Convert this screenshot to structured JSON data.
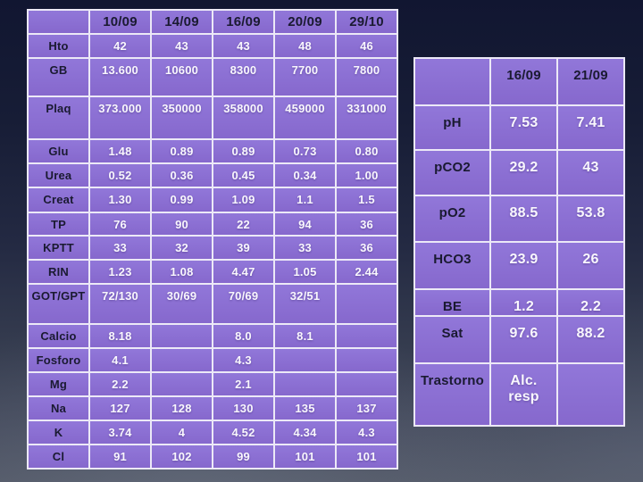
{
  "colors": {
    "cell_fill": "#8a6fd3",
    "cell_border": "#ece9f7",
    "label_text": "#1a1a31",
    "value_text": "#f9f7fd",
    "background_top": "#111631",
    "background_bottom": "#515765"
  },
  "left_table": {
    "columns": [
      "",
      "10/09",
      "14/09",
      "16/09",
      "20/09",
      "29/10"
    ],
    "rows": [
      {
        "label": "Hto",
        "values": [
          "42",
          "43",
          "43",
          "48",
          "46"
        ]
      },
      {
        "label": "GB",
        "values": [
          "13.600",
          "10600",
          "8300",
          "7700",
          "7800"
        ]
      },
      {
        "label": "Plaq",
        "values": [
          "373.000",
          "350000",
          "358000",
          "459000",
          "331000"
        ]
      },
      {
        "label": "Glu",
        "values": [
          "1.48",
          "0.89",
          "0.89",
          "0.73",
          "0.80"
        ]
      },
      {
        "label": "Urea",
        "values": [
          "0.52",
          "0.36",
          "0.45",
          "0.34",
          "1.00"
        ]
      },
      {
        "label": "Creat",
        "values": [
          "1.30",
          "0.99",
          "1.09",
          "1.1",
          "1.5"
        ]
      },
      {
        "label": "TP",
        "values": [
          "76",
          "90",
          "22",
          "94",
          "36"
        ]
      },
      {
        "label": "KPTT",
        "values": [
          "33",
          "32",
          "39",
          "33",
          "36"
        ]
      },
      {
        "label": "RIN",
        "values": [
          "1.23",
          "1.08",
          "4.47",
          "1.05",
          "2.44"
        ]
      },
      {
        "label": "GOT/GPT",
        "values": [
          "72/130",
          "30/69",
          "70/69",
          "32/51",
          ""
        ]
      },
      {
        "label": "Calcio",
        "values": [
          "8.18",
          "",
          "8.0",
          "8.1",
          ""
        ]
      },
      {
        "label": "Fosforo",
        "values": [
          "4.1",
          "",
          "4.3",
          "",
          ""
        ]
      },
      {
        "label": "Mg",
        "values": [
          "2.2",
          "",
          "2.1",
          "",
          ""
        ]
      },
      {
        "label": "Na",
        "values": [
          "127",
          "128",
          "130",
          "135",
          "137"
        ]
      },
      {
        "label": "K",
        "values": [
          "3.74",
          "4",
          "4.52",
          "4.34",
          "4.3"
        ]
      },
      {
        "label": "Cl",
        "values": [
          "91",
          "102",
          "99",
          "101",
          "101"
        ]
      }
    ]
  },
  "right_table": {
    "columns": [
      "",
      "16/09",
      "21/09"
    ],
    "rows": [
      {
        "label": "pH",
        "values": [
          "7.53",
          "7.41"
        ]
      },
      {
        "label": "pCO2",
        "values": [
          "29.2",
          "43"
        ]
      },
      {
        "label": "pO2",
        "values": [
          "88.5",
          "53.8"
        ]
      },
      {
        "label": "HCO3",
        "values": [
          "23.9",
          "26"
        ]
      },
      {
        "label": "BE",
        "values": [
          "1.2",
          "2.2"
        ]
      },
      {
        "label": "Sat",
        "values": [
          "97.6",
          "88.2"
        ]
      },
      {
        "label": "Trastorno",
        "values": [
          "Alc.\nresp",
          ""
        ]
      }
    ]
  }
}
